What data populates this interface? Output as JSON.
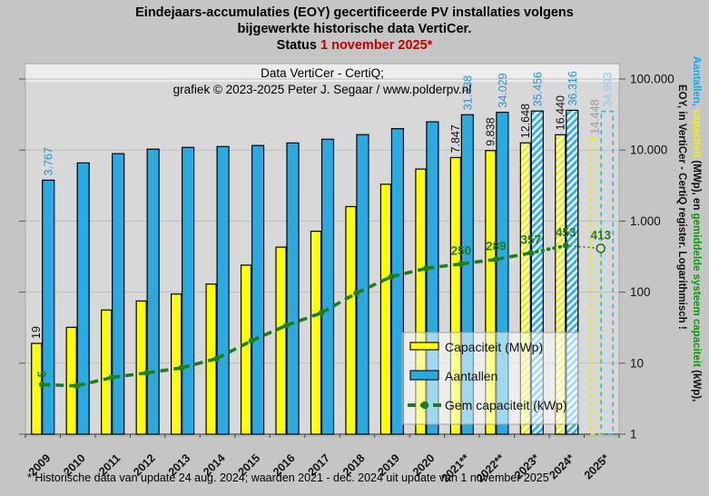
{
  "title": {
    "line1": "Eindejaars-accumulaties (EOY) gecertificeerde PV installaties volgens",
    "line2": "bijgewerkte historische data VertiCer.",
    "status_prefix": "Status ",
    "status_date": "1 november 2025*",
    "status_date_color": "#c00000"
  },
  "inner_title": {
    "line1": "Data VertiCer - CertiQ;",
    "line2": "grafiek © 2023-2025 Peter J. Segaar / www.polderpv.nl"
  },
  "footnote": "* Historische data van update 24 aug. 2024; waarden 2021 - dec. 2024 uit update van 1 november 2025",
  "right_axis_label": {
    "part1": "Aantallen,",
    "part2": " capaciteit",
    "part3": " (MWp), en ",
    "part4": "gemiddelde systeem capaciteit",
    "part5": " (kWp),",
    "line2": "EOY, in VertiCer - CertiQ register. Logarithmisch !",
    "part1_color": "#00b0f0",
    "part2_color": "#f2f200",
    "part4_color": "#00a000",
    "text_color": "#111111"
  },
  "legend": {
    "items": [
      {
        "label": "Capaciteit (MWp)",
        "type": "bar",
        "color": "#ffff00"
      },
      {
        "label": "Aantallen",
        "type": "bar",
        "color": "#29abe2"
      },
      {
        "label": "Gem capaciteit (kWp)",
        "type": "line",
        "color": "#1e7d1e"
      }
    ]
  },
  "chart_data": {
    "type": "bar",
    "scale": "log",
    "ylim": [
      1,
      100000
    ],
    "grid": true,
    "yticks": [
      {
        "value": 100000,
        "label": "100.000"
      },
      {
        "value": 10000,
        "label": "10.000"
      },
      {
        "value": 1000,
        "label": "1.000"
      },
      {
        "value": 100,
        "label": "100"
      },
      {
        "value": 10,
        "label": "10"
      },
      {
        "value": 1,
        "label": "1"
      }
    ],
    "categories": [
      "2009",
      "2010",
      "2011",
      "2012",
      "2013",
      "2014",
      "2015",
      "2016",
      "2017",
      "2018",
      "2019",
      "2020",
      "2021**",
      "2022**",
      "2023*",
      "2024*",
      "2025*"
    ],
    "bar_styles": [
      "solid",
      "solid",
      "solid",
      "solid",
      "solid",
      "solid",
      "solid",
      "solid",
      "solid",
      "solid",
      "solid",
      "solid",
      "solid",
      "solid",
      "hatch",
      "hatch",
      "dashed"
    ],
    "series": [
      {
        "name": "Capaciteit (MWp)",
        "type": "bar",
        "color": "#ffff00",
        "dashed_color": "#e9e900",
        "label_color": "#111111",
        "final_label_color": "#9a9a9a",
        "values": [
          19,
          32,
          56,
          75,
          94,
          130,
          240,
          430,
          720,
          1600,
          3300,
          5400,
          7847,
          9838,
          12648,
          16440,
          14448
        ],
        "value_labels": [
          "19",
          null,
          null,
          null,
          null,
          null,
          null,
          null,
          null,
          null,
          null,
          null,
          "7.847",
          "9.838",
          "12.648",
          "16.440",
          "14.448"
        ]
      },
      {
        "name": "Aantallen",
        "type": "bar",
        "color": "#29abe2",
        "dashed_color": "#2fb5ea",
        "label_color": "#1f96d8",
        "final_label_color": "#8ecbe6",
        "values": [
          3767,
          6600,
          8900,
          10300,
          10900,
          11200,
          11600,
          12600,
          14200,
          16500,
          20000,
          25000,
          31438,
          34029,
          35456,
          36316,
          34993
        ],
        "value_labels": [
          "3.767",
          null,
          null,
          null,
          null,
          null,
          null,
          null,
          null,
          null,
          null,
          null,
          "31.438",
          "34.029",
          "35.456",
          "36.316",
          "34.993"
        ]
      },
      {
        "name": "Gem capaciteit (kWp)",
        "type": "line",
        "color": "#1e7d1e",
        "values": [
          5,
          4.8,
          6.3,
          7.3,
          8.6,
          11.6,
          20.7,
          34,
          51,
          97,
          165,
          216,
          250,
          289,
          357,
          453,
          413
        ],
        "value_labels": [
          "5",
          null,
          null,
          null,
          null,
          null,
          null,
          null,
          null,
          null,
          null,
          null,
          "250",
          "289",
          "357",
          "453",
          "413"
        ]
      }
    ]
  }
}
